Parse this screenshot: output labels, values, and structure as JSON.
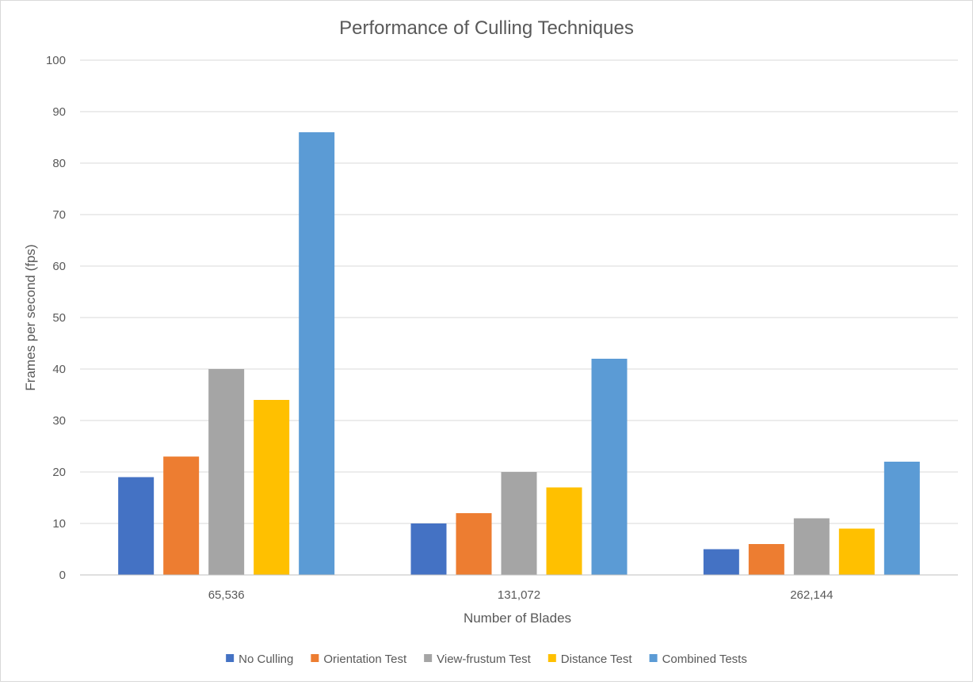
{
  "chart_data": {
    "type": "bar",
    "title": "Performance of Culling Techniques",
    "xlabel": "Number of Blades",
    "ylabel": "Frames per second (fps)",
    "categories": [
      "65,536",
      "131,072",
      "262,144"
    ],
    "ylim": [
      0,
      100
    ],
    "yticks": [
      0,
      10,
      20,
      30,
      40,
      50,
      60,
      70,
      80,
      90,
      100
    ],
    "grid": true,
    "legend_position": "bottom",
    "series": [
      {
        "name": "No Culling",
        "values": [
          19,
          10,
          5
        ],
        "color": "#4472C4"
      },
      {
        "name": "Orientation Test",
        "values": [
          23,
          12,
          6
        ],
        "color": "#ED7D31"
      },
      {
        "name": "View-frustum Test",
        "values": [
          40,
          20,
          11
        ],
        "color": "#A5A5A5"
      },
      {
        "name": "Distance Test",
        "values": [
          34,
          17,
          9
        ],
        "color": "#FFC000"
      },
      {
        "name": "Combined Tests",
        "values": [
          86,
          42,
          22
        ],
        "color": "#5B9BD5"
      }
    ]
  }
}
